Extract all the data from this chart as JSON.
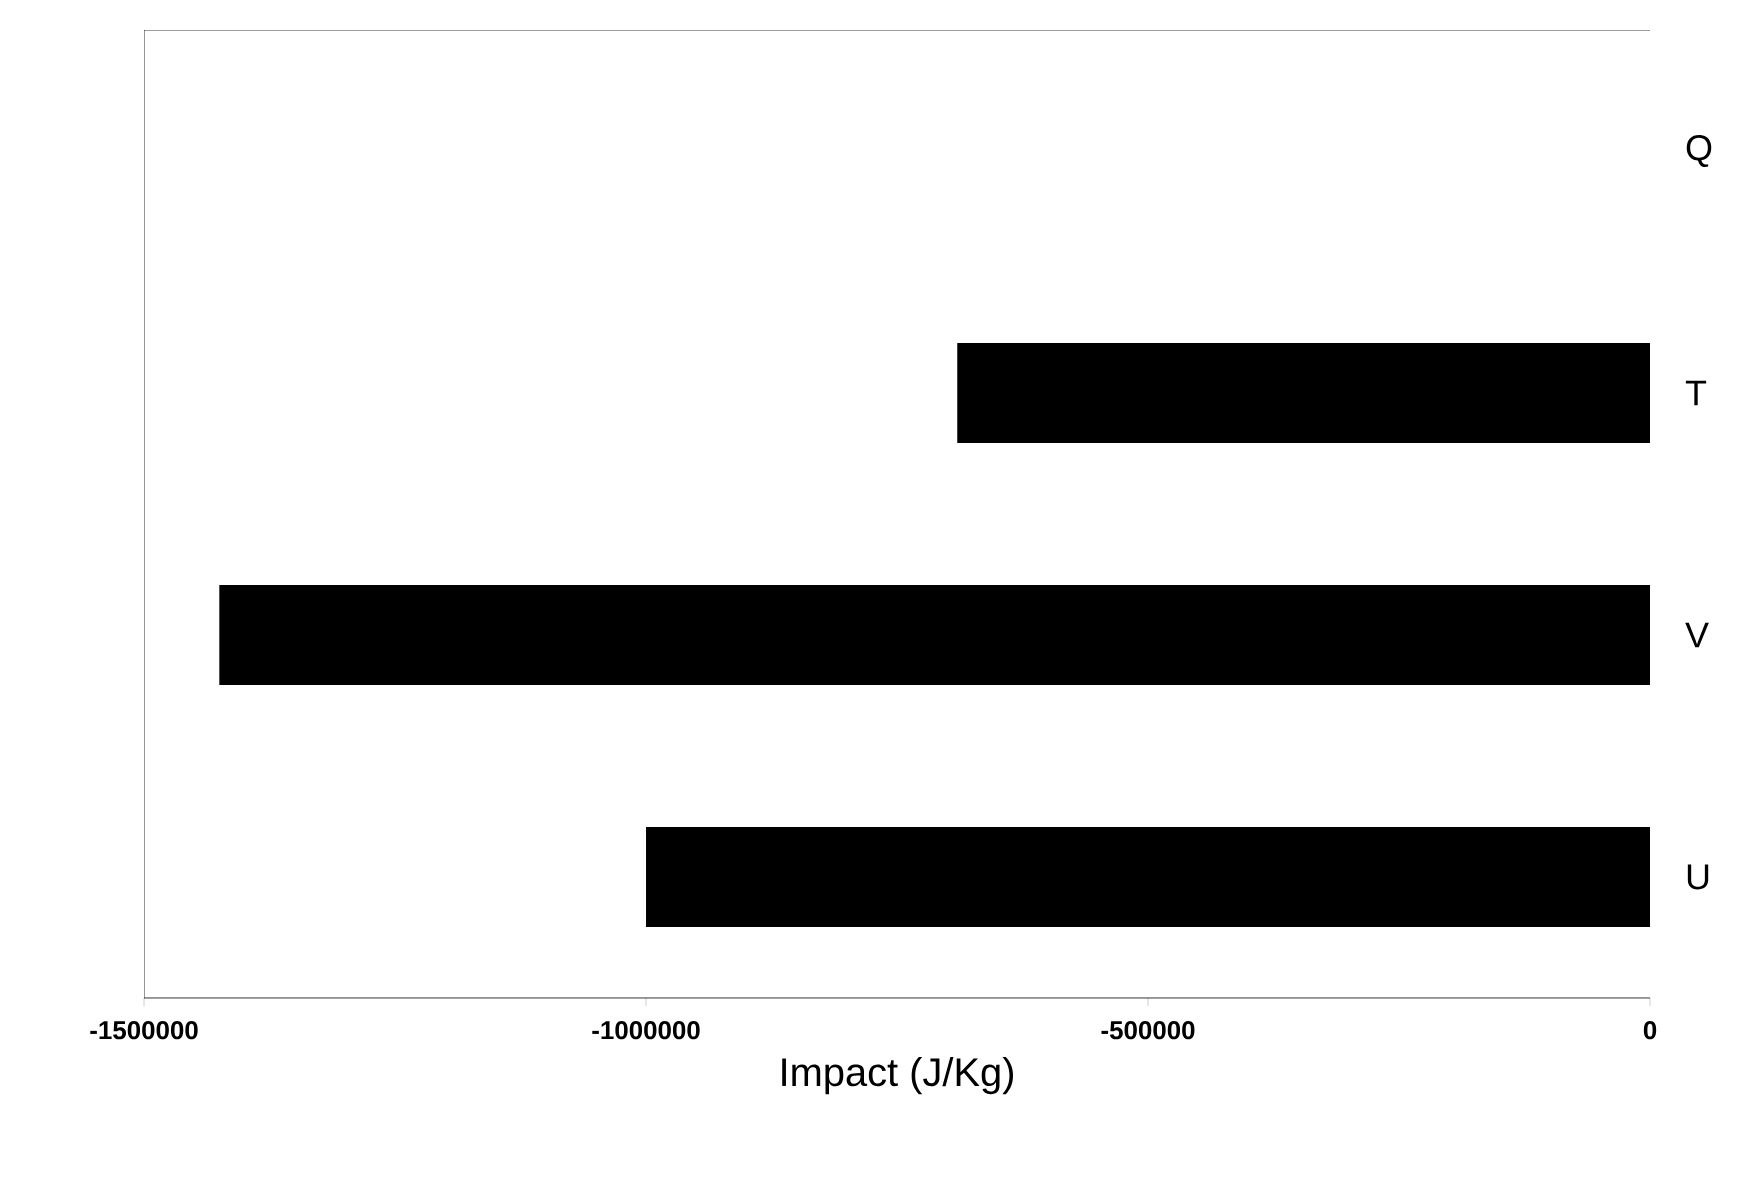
{
  "chart_data": {
    "type": "bar",
    "orientation": "horizontal",
    "xlabel": "Impact (J/Kg)",
    "categories": [
      "Q",
      "T",
      "V",
      "U"
    ],
    "values": [
      0,
      -690000,
      -1425000,
      -1000000
    ],
    "color": "#000000",
    "xlim": [
      -1500000,
      0
    ],
    "xticks": [
      -1500000,
      -1000000,
      -500000,
      0
    ],
    "grid": false
  }
}
